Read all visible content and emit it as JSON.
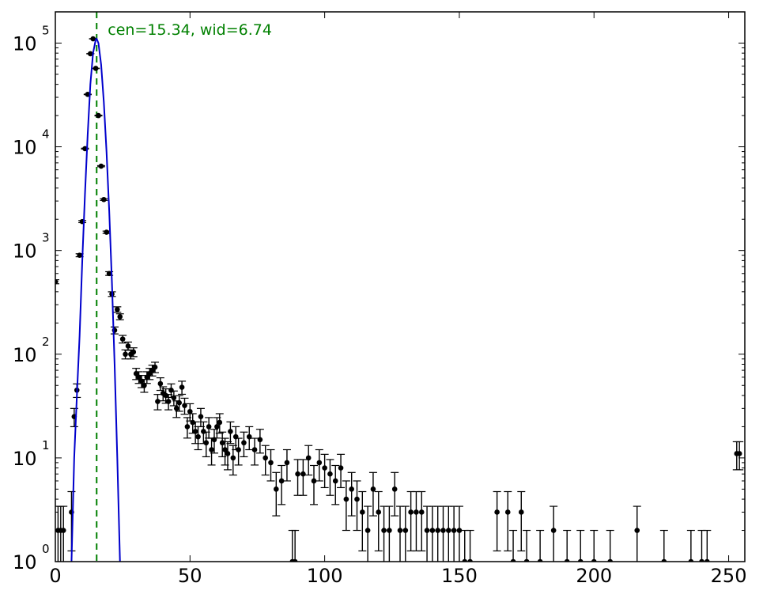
{
  "chart_data": {
    "type": "scatter",
    "title": "",
    "xlabel": "",
    "ylabel": "",
    "xlim": [
      0,
      256
    ],
    "ylim": [
      1,
      200000
    ],
    "yscale": "log",
    "grid": false,
    "x_ticks": [
      0,
      50,
      100,
      150,
      200,
      250
    ],
    "x_tick_labels": [
      "0",
      "50",
      "100",
      "150",
      "200",
      "250"
    ],
    "y_ticks": [
      1,
      10,
      100,
      1000,
      10000,
      100000
    ],
    "y_tick_labels": [
      {
        "base": "10",
        "exp": "0"
      },
      {
        "base": "10",
        "exp": "1"
      },
      {
        "base": "10",
        "exp": "2"
      },
      {
        "base": "10",
        "exp": "3"
      },
      {
        "base": "10",
        "exp": "4"
      },
      {
        "base": "10",
        "exp": "5"
      }
    ],
    "annotation": {
      "text": "cen=15.34, wid=6.74",
      "x_line": 15.34,
      "color": "#008000"
    },
    "series": [
      {
        "style": "points-with-error-bars",
        "color": "#000000",
        "x": [
          0,
          1,
          2,
          3,
          6,
          7,
          8,
          9,
          10,
          11,
          12,
          13,
          14,
          15,
          16,
          17,
          18,
          19,
          20,
          21,
          22,
          23,
          24,
          25,
          26,
          27,
          28,
          29,
          30,
          31,
          32,
          33,
          34,
          35,
          36,
          37,
          38,
          39,
          40,
          41,
          42,
          43,
          44,
          45,
          46,
          47,
          48,
          49,
          50,
          51,
          52,
          53,
          54,
          55,
          56,
          57,
          58,
          59,
          60,
          61,
          62,
          63,
          64,
          65,
          66,
          67,
          68,
          70,
          72,
          74,
          76,
          78,
          80,
          82,
          84,
          86,
          88,
          89,
          90,
          92,
          94,
          96,
          98,
          100,
          102,
          104,
          106,
          108,
          110,
          112,
          114,
          116,
          118,
          120,
          122,
          124,
          126,
          128,
          130,
          132,
          134,
          136,
          138,
          140,
          142,
          144,
          146,
          148,
          150,
          152,
          154,
          164,
          168,
          170,
          173,
          175,
          180,
          185,
          190,
          195,
          200,
          206,
          216,
          226,
          236,
          240,
          242,
          253,
          254
        ],
        "y": [
          500,
          2,
          2,
          2,
          3,
          25,
          45,
          900,
          1900,
          9600,
          32000,
          79000,
          110000,
          57000,
          20000,
          6500,
          3100,
          1500,
          600,
          380,
          170,
          270,
          230,
          140,
          100,
          120,
          100,
          105,
          65,
          60,
          55,
          50,
          60,
          65,
          70,
          75,
          35,
          52,
          42,
          40,
          35,
          45,
          38,
          30,
          34,
          48,
          32,
          20,
          28,
          22,
          18,
          16,
          25,
          18,
          14,
          20,
          12,
          15,
          20,
          22,
          14,
          12,
          11,
          18,
          10,
          16,
          12,
          14,
          16,
          12,
          15,
          10,
          9,
          5,
          6,
          9,
          1,
          1,
          7,
          7,
          10,
          6,
          9,
          8,
          7,
          6,
          8,
          4,
          5,
          4,
          3,
          2,
          5,
          3,
          2,
          2,
          5,
          2,
          2,
          3,
          3,
          3,
          2,
          2,
          2,
          2,
          2,
          2,
          2,
          1,
          1,
          3,
          3,
          1,
          3,
          1,
          1,
          2,
          1,
          1,
          1,
          1,
          2,
          1,
          1,
          1,
          1,
          11,
          11
        ]
      },
      {
        "style": "line",
        "color": "#0000cc",
        "x": [
          6,
          7,
          8,
          9,
          10,
          11,
          12,
          13,
          14,
          15,
          15.34,
          16,
          17,
          18,
          19,
          20,
          21,
          22,
          23,
          24
        ],
        "y": [
          1,
          10,
          40,
          150,
          800,
          3500,
          13000,
          40000,
          80000,
          108000,
          110000,
          100000,
          62000,
          27000,
          9000,
          2400,
          500,
          80,
          10,
          1
        ]
      }
    ]
  }
}
